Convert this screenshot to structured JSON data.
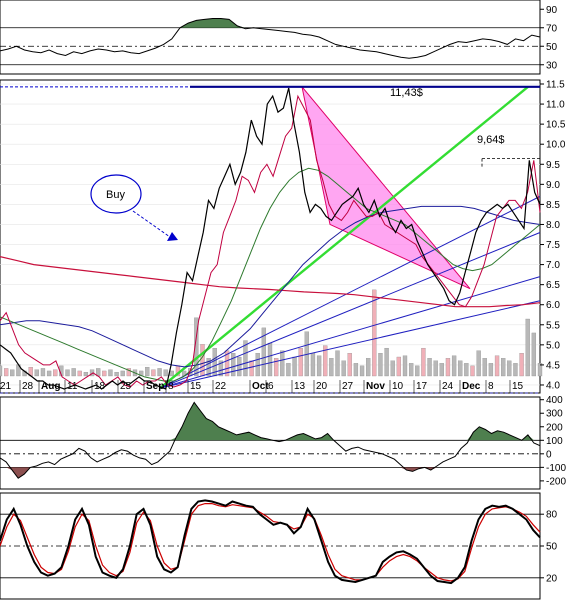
{
  "chart_data": [
    {
      "panel": "top-oscillator",
      "type": "line",
      "yticks": [
        "90",
        "70",
        "50",
        "30"
      ],
      "ylim": [
        20,
        100
      ],
      "reference_lines": [
        70,
        50,
        30
      ],
      "series": [
        {
          "values": [
            45,
            47,
            50,
            46,
            44,
            43,
            46,
            42,
            40,
            44,
            42,
            45,
            47,
            46,
            44,
            45,
            43,
            42,
            45,
            48,
            52,
            58,
            70,
            75,
            78,
            79,
            80,
            80,
            79,
            72,
            69,
            70,
            69,
            68,
            67,
            66,
            65,
            63,
            62,
            60,
            56,
            52,
            50,
            48,
            46,
            45,
            44,
            42,
            40,
            38,
            37,
            38,
            40,
            44,
            48,
            52,
            55,
            54,
            56,
            58,
            57,
            55,
            52,
            58,
            56,
            62,
            60
          ]
        }
      ],
      "fill_above": 70,
      "fill_color": "#4e7f4e"
    },
    {
      "panel": "price",
      "type": "line",
      "yticks": [
        "11.5",
        "11.0",
        "10.5",
        "10.0",
        "9.5",
        "9.0",
        "8.5",
        "8.0",
        "7.5",
        "7.0",
        "6.5",
        "6.0",
        "5.5",
        "5.0",
        "4.5",
        "4.0"
      ],
      "ylim": [
        3.8,
        11.6
      ],
      "xlabels": [
        "21",
        "28",
        "Aug",
        "11",
        "18",
        "25",
        "Sep",
        "8",
        "15",
        "22",
        "Oct",
        "6",
        "13",
        "20",
        "27",
        "Nov",
        "10",
        "17",
        "24",
        "Dec",
        "8",
        "15"
      ],
      "bold_xlabels": [
        "Aug",
        "Sep",
        "Oct",
        "Nov",
        "Dec"
      ],
      "annotations": [
        {
          "text": "11,43$",
          "value": 11.43
        },
        {
          "text": "9,64$",
          "value": 9.64
        },
        {
          "text": "Buy"
        }
      ],
      "series": [
        {
          "name": "",
          "color": "#000000",
          "values": [
            5.0,
            4.9,
            4.8,
            4.6,
            4.4,
            4.3,
            4.2,
            4.1,
            4.1,
            4.0,
            4.0,
            3.95,
            3.9,
            3.95,
            4.0,
            3.95,
            3.9,
            3.95,
            4.0,
            3.9,
            4.0,
            4.1,
            4.0,
            4.1,
            4.0,
            4.1,
            4.2,
            4.1,
            4.1,
            4.0,
            3.95,
            3.9,
            4.5,
            5.3,
            6.0,
            6.8,
            6.6,
            7.2,
            7.8,
            8.6,
            8.4,
            8.9,
            9.2,
            9.5,
            9.0,
            9.3,
            9.8,
            10.6,
            10.2,
            10.0,
            11.0,
            11.2,
            10.8,
            10.9,
            11.4,
            10.5,
            9.8,
            8.8,
            8.3,
            8.5,
            8.4,
            8.2,
            8.1,
            8.3,
            8.5,
            8.6,
            8.7,
            8.9,
            8.5,
            8.3,
            8.6,
            8.2,
            8.4,
            8.0,
            7.8,
            8.1,
            7.9,
            8.0,
            7.6,
            7.3,
            7.0,
            6.8,
            6.6,
            6.4,
            6.1,
            6.0,
            6.3,
            6.8,
            7.3,
            7.8,
            8.1,
            8.3,
            8.4,
            8.5,
            8.4,
            8.5,
            8.3,
            8.1,
            7.9,
            9.6,
            8.8,
            8.5
          ]
        },
        {
          "name": "",
          "color": "#c00040",
          "values": [
            5.6,
            5.8,
            5.4,
            5.0,
            4.8,
            4.7,
            4.6,
            4.5,
            4.5,
            4.6,
            4.2,
            4.1,
            4.0,
            4.1,
            4.2,
            4.3,
            4.2,
            4.0,
            4.1,
            4.2,
            4.0,
            3.95,
            4.1,
            4.0,
            4.1,
            4.1,
            4.2,
            4.0,
            3.95,
            4.0,
            4.1,
            4.5,
            5.6,
            6.2,
            6.8,
            7.0,
            7.8,
            8.2,
            8.6,
            9.2,
            9.1,
            8.8,
            9.3,
            9.5,
            9.2,
            9.7,
            10.2,
            10.4,
            11.2,
            10.9,
            10.6,
            9.6,
            9.1,
            8.5,
            8.2,
            8.1,
            8.3,
            8.6,
            8.4,
            8.2,
            8.2,
            8.3,
            8.0,
            7.9,
            7.8,
            7.7,
            7.6,
            7.5,
            7.2,
            7.0,
            6.8,
            6.6,
            6.4,
            6.2,
            6.0,
            5.95,
            6.2,
            6.6,
            7.0,
            7.6,
            8.2,
            8.4,
            8.6,
            8.6,
            8.4,
            8.8,
            9.6,
            8.3
          ]
        },
        {
          "name": "",
          "color": "#2e7a2e",
          "values": [
            5.7,
            5.6,
            5.5,
            5.4,
            5.3,
            5.2,
            5.1,
            5.0,
            4.9,
            4.8,
            4.7,
            4.6,
            4.5,
            4.4,
            4.3,
            4.2,
            4.15,
            4.1,
            4.1,
            4.2,
            4.4,
            4.7,
            5.1,
            5.6,
            6.1,
            6.7,
            7.3,
            7.9,
            8.4,
            8.8,
            9.1,
            9.3,
            9.4,
            9.35,
            9.2,
            9.0,
            8.8,
            8.6,
            8.4,
            8.3,
            8.2,
            8.1,
            8.0,
            7.8,
            7.6,
            7.4,
            7.2,
            7.0,
            6.9,
            6.85,
            6.9,
            7.0,
            7.2,
            7.4,
            7.6,
            7.8,
            8.0
          ]
        },
        {
          "name": "",
          "color": "#1c1c9c",
          "values": [
            5.5,
            5.55,
            5.6,
            5.6,
            5.55,
            5.5,
            5.45,
            5.35,
            5.2,
            5.05,
            4.9,
            4.75,
            4.6,
            4.5,
            4.45,
            4.5,
            4.6,
            4.8,
            5.1,
            5.4,
            5.8,
            6.2,
            6.6,
            7.0,
            7.3,
            7.6,
            7.85,
            8.05,
            8.2,
            8.3,
            8.35,
            8.4,
            8.45,
            8.45,
            8.45,
            8.45,
            8.4,
            8.3,
            8.2,
            8.1,
            8.05,
            8.0
          ]
        },
        {
          "name": "",
          "color": "#c8103c",
          "values": [
            7.2,
            7.1,
            7.0,
            6.95,
            6.9,
            6.85,
            6.8,
            6.75,
            6.7,
            6.65,
            6.6,
            6.55,
            6.5,
            6.45,
            6.42,
            6.4,
            6.38,
            6.35,
            6.32,
            6.3,
            6.28,
            6.25,
            6.2,
            6.15,
            6.1,
            6.05,
            6.0,
            5.95,
            5.95,
            5.95,
            5.98,
            6.0,
            6.05
          ]
        }
      ],
      "horizontal_lines": [
        {
          "value": 11.43,
          "color": "#00008b"
        },
        {
          "value": 9.64,
          "color": "#000000",
          "style": "dashed"
        },
        {
          "value": 3.9,
          "color": "#1c1c9c",
          "style": "dashed"
        }
      ],
      "volume": [
        8,
        6,
        5,
        9,
        4,
        7,
        5,
        6,
        4,
        5,
        8,
        5,
        6,
        4,
        3,
        5,
        6,
        4,
        5,
        3,
        4,
        6,
        5,
        4,
        7,
        5,
        6,
        5,
        4,
        8,
        4,
        6,
        46,
        25,
        14,
        22,
        12,
        20,
        18,
        15,
        28,
        12,
        18,
        38,
        26,
        14,
        20,
        10,
        15,
        22,
        35,
        18,
        16,
        24,
        14,
        20,
        12,
        18,
        10,
        8,
        14,
        68,
        18,
        22,
        12,
        15,
        16,
        10,
        8,
        22,
        14,
        12,
        10,
        14,
        16,
        12,
        10,
        8,
        20,
        14,
        10,
        16,
        14,
        12,
        10,
        18,
        45,
        34,
        10
      ]
    },
    {
      "panel": "middle-oscillator",
      "type": "line",
      "yticks": [
        "400",
        "300",
        "200",
        "100",
        "0",
        "-100",
        "-200"
      ],
      "ylim": [
        -260,
        420
      ],
      "reference_lines": [
        100,
        0,
        -100
      ],
      "series": [
        {
          "values": [
            -30,
            -60,
            -120,
            -180,
            -150,
            -100,
            -90,
            -70,
            -60,
            -80,
            -40,
            -20,
            0,
            40,
            20,
            -30,
            -60,
            -40,
            -20,
            10,
            30,
            20,
            -10,
            -30,
            -40,
            -80,
            -60,
            -20,
            20,
            120,
            200,
            300,
            380,
            320,
            260,
            240,
            200,
            180,
            160,
            140,
            150,
            160,
            140,
            120,
            110,
            100,
            90,
            100,
            120,
            140,
            150,
            130,
            110,
            120,
            150,
            100,
            60,
            20,
            40,
            50,
            30,
            20,
            10,
            0,
            -20,
            -40,
            -80,
            -120,
            -130,
            -110,
            -100,
            -120,
            -90,
            -60,
            -40,
            -20,
            40,
            80,
            160,
            200,
            180,
            150,
            170,
            160,
            140,
            120,
            100,
            140,
            80,
            60
          ]
        }
      ]
    },
    {
      "panel": "bottom-oscillator",
      "type": "line",
      "yticks": [
        "80",
        "50",
        "20"
      ],
      "ylim": [
        0,
        100
      ],
      "reference_lines": [
        80,
        50,
        20
      ],
      "series": [
        {
          "name": "",
          "color": "#000000",
          "values": [
            55,
            75,
            85,
            70,
            50,
            35,
            25,
            22,
            24,
            30,
            50,
            75,
            85,
            70,
            40,
            25,
            22,
            20,
            28,
            50,
            80,
            85,
            70,
            40,
            28,
            25,
            30,
            60,
            85,
            92,
            93,
            92,
            90,
            88,
            92,
            90,
            88,
            87,
            80,
            75,
            70,
            72,
            70,
            62,
            68,
            85,
            75,
            55,
            35,
            22,
            18,
            17,
            16,
            18,
            20,
            22,
            35,
            40,
            44,
            45,
            42,
            38,
            30,
            22,
            17,
            16,
            15,
            20,
            30,
            55,
            75,
            85,
            88,
            87,
            88,
            85,
            80,
            75,
            65,
            58
          ]
        },
        {
          "name": "",
          "color": "#cc0000",
          "values": [
            50,
            68,
            80,
            74,
            58,
            42,
            30,
            25,
            24,
            28,
            45,
            68,
            80,
            74,
            50,
            32,
            25,
            22,
            26,
            44,
            72,
            82,
            74,
            50,
            34,
            28,
            30,
            55,
            80,
            88,
            90,
            90,
            88,
            87,
            89,
            88,
            87,
            86,
            82,
            78,
            73,
            72,
            70,
            66,
            68,
            80,
            76,
            60,
            42,
            28,
            22,
            20,
            18,
            18,
            20,
            22,
            30,
            36,
            40,
            42,
            40,
            36,
            30,
            25,
            20,
            18,
            17,
            19,
            26,
            48,
            68,
            80,
            85,
            86,
            87,
            85,
            82,
            78,
            70,
            63
          ]
        }
      ]
    }
  ]
}
